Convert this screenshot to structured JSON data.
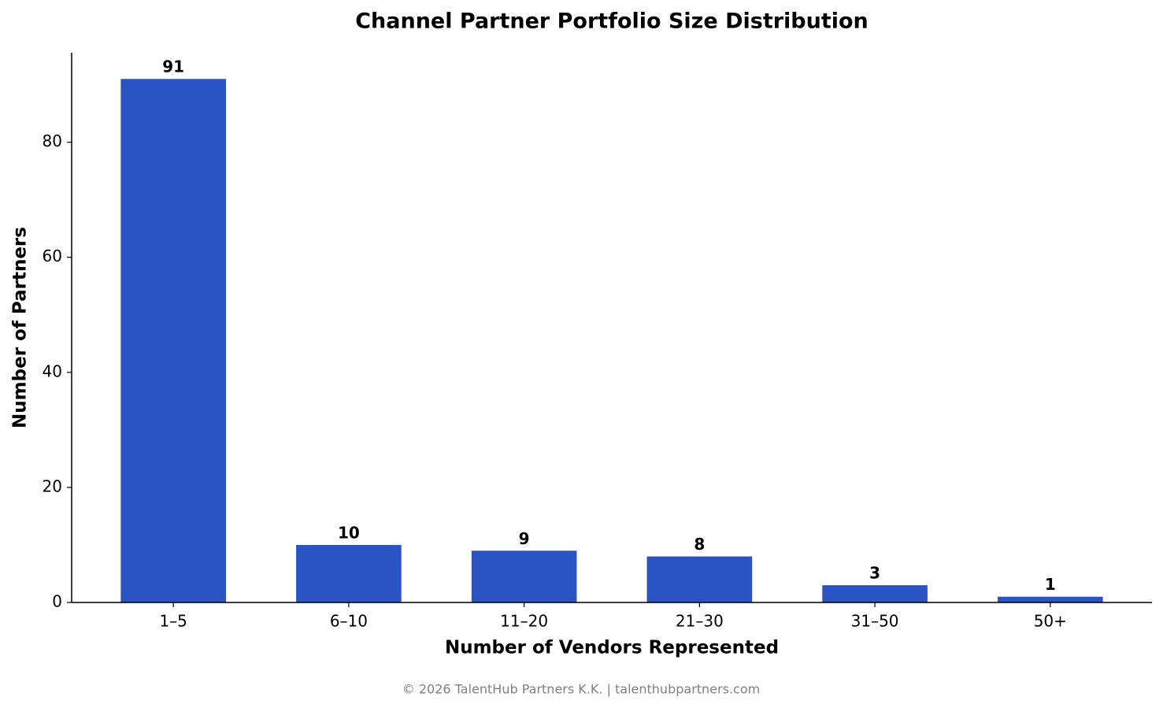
{
  "chart_data": {
    "type": "bar",
    "title": "Channel Partner Portfolio Size Distribution",
    "x_label": "Number of Vendors Represented",
    "y_label": "Number of Partners",
    "categories": [
      "1–5",
      "6–10",
      "11–20",
      "21–30",
      "31–50",
      "50+"
    ],
    "values": [
      91,
      10,
      9,
      8,
      3,
      1
    ],
    "color": "#2a54c4",
    "ylim": [
      0,
      95.55
    ],
    "yticks": [
      0,
      20,
      40,
      60,
      80
    ],
    "grid": false
  },
  "footer": "© 2026 TalentHub Partners K.K. | talenthubpartners.com"
}
